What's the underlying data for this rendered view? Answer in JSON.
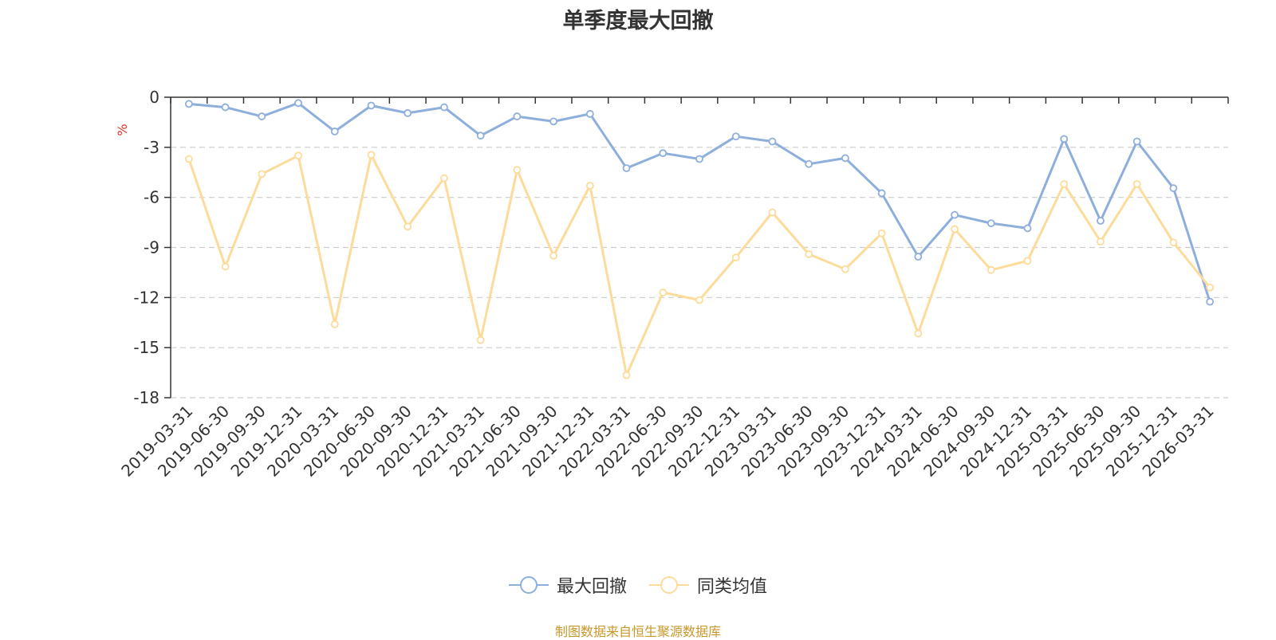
{
  "title": "单季度最大回撤",
  "source_note": "制图数据来自恒生聚源数据库",
  "colors": {
    "series_1": "#8eaedc",
    "series_2": "#fddb9b",
    "y_unit": "#e0312a",
    "source_note": "#c9972a",
    "axis": "#333333",
    "grid": "#cccccc"
  },
  "legend": {
    "position": "bottom-center",
    "items": [
      "最大回撤",
      "同类均值"
    ]
  },
  "chart_data": {
    "type": "line",
    "title": "单季度最大回撤",
    "ylabel": "%",
    "xlabel": "",
    "ylim": [
      -18,
      0
    ],
    "yticks": [
      0,
      -3,
      -6,
      -9,
      -12,
      -15,
      -18
    ],
    "grid": true,
    "categories": [
      "2019-03-31",
      "2019-06-30",
      "2019-09-30",
      "2019-12-31",
      "2020-03-31",
      "2020-06-30",
      "2020-09-30",
      "2020-12-31",
      "2021-03-31",
      "2021-06-30",
      "2021-09-30",
      "2021-12-31",
      "2022-03-31",
      "2022-06-30",
      "2022-09-30",
      "2022-12-31",
      "2023-03-31",
      "2023-06-30",
      "2023-09-30",
      "2023-12-31",
      "2024-03-31",
      "2024-06-30",
      "2024-09-30",
      "2024-12-31",
      "2025-03-31",
      "2025-06-30",
      "2025-09-30",
      "2025-12-31",
      "2026-03-31"
    ],
    "series": [
      {
        "name": "最大回撤",
        "values": [
          -0.4,
          -0.6,
          -1.15,
          -0.35,
          -2.05,
          -0.5,
          -0.95,
          -0.6,
          -2.3,
          -1.15,
          -1.45,
          -1.0,
          -4.25,
          -3.35,
          -3.7,
          -2.35,
          -2.65,
          -4.0,
          -3.65,
          -5.75,
          -9.55,
          -7.05,
          -7.55,
          -7.85,
          -2.5,
          -7.4,
          -2.65,
          -5.45,
          -12.25
        ]
      },
      {
        "name": "同类均值",
        "values": [
          -3.7,
          -10.15,
          -4.6,
          -3.5,
          -13.6,
          -3.45,
          -7.75,
          -4.85,
          -14.55,
          -4.35,
          -9.5,
          -5.3,
          -16.65,
          -11.7,
          -12.15,
          -9.6,
          -6.9,
          -9.4,
          -10.3,
          -8.15,
          -14.15,
          -7.9,
          -10.35,
          -9.8,
          -5.2,
          -8.65,
          -5.2,
          -8.7,
          -11.4
        ]
      }
    ]
  }
}
